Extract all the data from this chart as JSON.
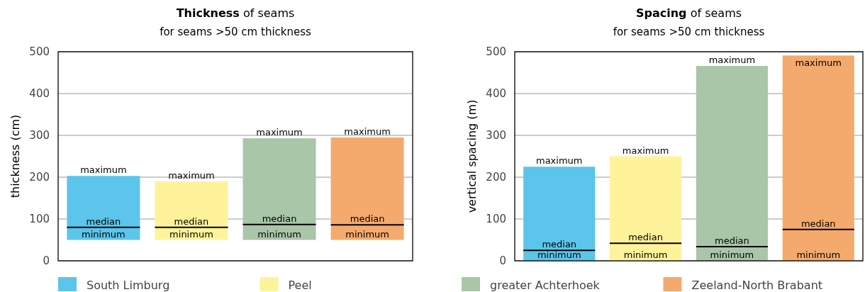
{
  "chart_data": [
    {
      "type": "box",
      "title": "Thickness of seams",
      "subtitle": "for seams >50 cm thickness",
      "ylabel": "thickness (cm)",
      "categories": [
        null,
        null,
        null,
        null
      ],
      "series": [
        {
          "name": "South Limburg",
          "color": "#5bc5eb",
          "boxes": [
            {
              "low": 50,
              "q1": 50,
              "median": 80,
              "q3": 203,
              "high": 203
            },
            null,
            null,
            null
          ]
        },
        {
          "name": "Peel",
          "color": "#fef39a",
          "boxes": [
            null,
            {
              "low": 50,
              "q1": 50,
              "median": 80,
              "q3": 190,
              "high": 190
            },
            null,
            null
          ]
        },
        {
          "name": "greater Achterhoek",
          "color": "#a9c6a8",
          "boxes": [
            null,
            null,
            {
              "low": 50,
              "q1": 50,
              "median": 87,
              "q3": 293,
              "high": 293
            },
            null
          ]
        },
        {
          "name": "Zeeland-North Brabant",
          "color": "#f4aa6d",
          "boxes": [
            null,
            null,
            null,
            {
              "low": 50,
              "q1": 50,
              "median": 86,
              "q3": 295,
              "high": 295
            }
          ]
        }
      ],
      "ylim": [
        0,
        500
      ],
      "yticks": [
        0,
        100,
        200,
        300,
        400,
        500
      ],
      "grid": "y",
      "tick_labels": "y",
      "legend": "bottom",
      "annotations": [
        {
          "text": "maximum",
          "y": 203
        },
        {
          "text": "median",
          "y": 80
        },
        {
          "text": "minimum",
          "y": 50
        },
        {
          "text": "maximum",
          "y": 190
        },
        {
          "text": "median",
          "y": 80
        },
        {
          "text": "minimum",
          "y": 50
        },
        {
          "text": "maximum",
          "y": 293
        },
        {
          "text": "median",
          "y": 87
        },
        {
          "text": "minimum",
          "y": 50
        },
        {
          "text": "maximum",
          "y": 295
        },
        {
          "text": "median",
          "y": 86
        },
        {
          "text": "minimum",
          "y": 50
        }
      ]
    },
    {
      "type": "box",
      "title": "Spacing of seams",
      "subtitle": "for seams >50 cm thickness",
      "ylabel": "vertical spacing (m)",
      "categories": [
        null,
        null,
        null,
        null
      ],
      "series": [
        {
          "color": "#5bc5eb",
          "boxes": [
            {
              "low": 0,
              "q1": 0,
              "median": 25,
              "q3": 225,
              "high": 225
            },
            null,
            null,
            null
          ]
        },
        {
          "color": "#fef39a",
          "boxes": [
            null,
            {
              "low": 0,
              "q1": 0,
              "median": 42,
              "q3": 250,
              "high": 250
            },
            null,
            null
          ]
        },
        {
          "color": "#a9c6a8",
          "boxes": [
            null,
            null,
            {
              "low": 0,
              "q1": 0,
              "median": 34,
              "q3": 466,
              "high": 466
            },
            null
          ]
        },
        {
          "color": "#f4aa6d",
          "boxes": [
            null,
            null,
            null,
            {
              "low": 0,
              "q1": 0,
              "median": 75,
              "q3": 491,
              "high": 491
            }
          ]
        }
      ],
      "ylim": [
        0,
        500
      ],
      "yticks": [
        0,
        100,
        200,
        300,
        400,
        500
      ],
      "grid": "y",
      "tick_labels": "y",
      "annotations": [
        {
          "text": "maximum",
          "y": 225
        },
        {
          "text": "median",
          "y": 25
        },
        {
          "text": "minimum",
          "y": 0
        },
        {
          "text": "maximum",
          "y": 250
        },
        {
          "text": "median",
          "y": 42
        },
        {
          "text": "minimum",
          "y": 0
        },
        {
          "text": "maximum",
          "y": 466
        },
        {
          "text": "median",
          "y": 34
        },
        {
          "text": "minimum",
          "y": 0
        },
        {
          "text": "maximum",
          "y": 491
        },
        {
          "text": "median",
          "y": 75
        },
        {
          "text": "minimum",
          "y": 0
        }
      ]
    }
  ]
}
